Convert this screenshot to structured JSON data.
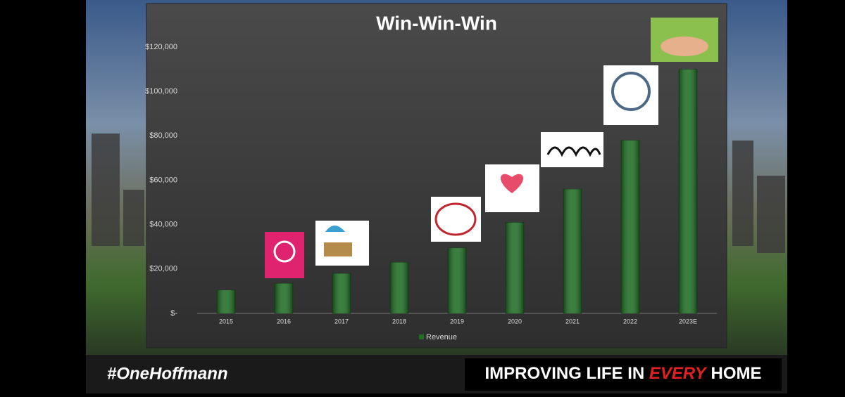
{
  "chart_data": {
    "type": "bar",
    "title": "Win-Win-Win",
    "categories": [
      "2015",
      "2016",
      "2017",
      "2018",
      "2019",
      "2020",
      "2021",
      "2022",
      "2023E"
    ],
    "series": [
      {
        "name": "Revenue",
        "color": "#1f6e24",
        "values": [
          10500,
          13500,
          18000,
          23000,
          29500,
          41000,
          56000,
          78000,
          110000
        ]
      }
    ],
    "ylim": [
      0,
      120000
    ],
    "yticks": [
      {
        "value": 0,
        "label": "$-"
      },
      {
        "value": 20000,
        "label": "$20,000"
      },
      {
        "value": 40000,
        "label": "$40,000"
      },
      {
        "value": 60000,
        "label": "$60,000"
      },
      {
        "value": 80000,
        "label": "$80,000"
      },
      {
        "value": 100000,
        "label": "$100,000"
      },
      {
        "value": 120000,
        "label": "$120,000"
      }
    ],
    "grid": false,
    "legend": "bottom"
  },
  "footer": {
    "hashtag": "#OneHoffmann",
    "slogan_start": "IMPROVING LIFE IN",
    "slogan_emphasis": "EVERY",
    "slogan_end": "HOME"
  }
}
